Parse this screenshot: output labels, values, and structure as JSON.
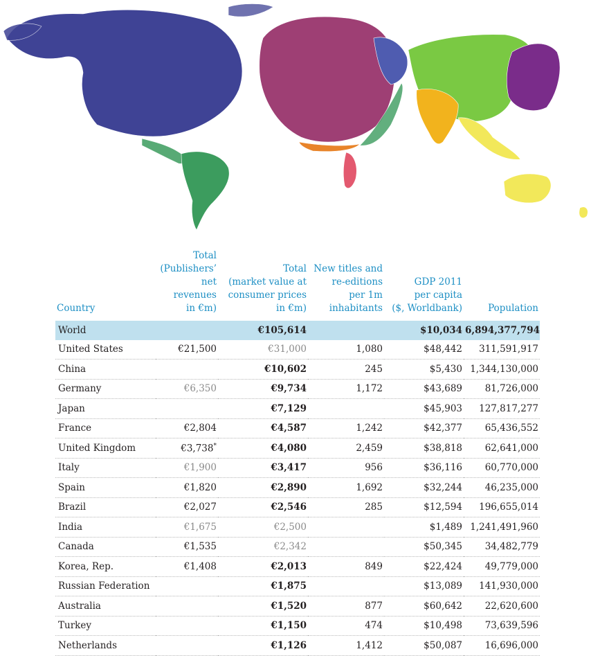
{
  "map": {
    "type": "cartogram",
    "colors": {
      "north_america": "#3f4395",
      "south_america": "#3c9c5e",
      "europe": "#9e3f74",
      "eastern_europe": "#4f5cb0",
      "russia_asia": "#7ac943",
      "east_asia": "#7a2c8a",
      "india": "#f2b31d",
      "southeast_asia": "#f2e85a",
      "oceania": "#f2e85a",
      "africa": "#e3596f",
      "middle_east": "#e8842a"
    }
  },
  "chart_data": {
    "type": "table",
    "columns": [
      "Country",
      "Total\n(Publishers’\nnet revenues\nin €m)",
      "Total\n(market value at\nconsumer prices\nin €m)",
      "New titles and\nre-editions\nper 1m\ninhabitants",
      "GDP 2011\nper capita\n($, Worldbank)",
      "Population"
    ],
    "rows": [
      {
        "country": "World",
        "pub": "",
        "market": "€105,614",
        "titles": "",
        "gdp": "$10,034",
        "pop": "6,894,377,794",
        "pub_grey": false,
        "market_grey": false
      },
      {
        "country": "United States",
        "pub": "€21,500",
        "market": "€31,000",
        "titles": "1,080",
        "gdp": "$48,442",
        "pop": "311,591,917",
        "pub_grey": false,
        "market_grey": true
      },
      {
        "country": "China",
        "pub": "",
        "market": "€10,602",
        "titles": "245",
        "gdp": "$5,430",
        "pop": "1,344,130,000",
        "pub_grey": false,
        "market_grey": false
      },
      {
        "country": "Germany",
        "pub": "€6,350",
        "market": "€9,734",
        "titles": "1,172",
        "gdp": "$43,689",
        "pop": "81,726,000",
        "pub_grey": true,
        "market_grey": false
      },
      {
        "country": "Japan",
        "pub": "",
        "market": "€7,129",
        "titles": "",
        "gdp": "$45,903",
        "pop": "127,817,277",
        "pub_grey": false,
        "market_grey": false
      },
      {
        "country": "France",
        "pub": "€2,804",
        "market": "€4,587",
        "titles": "1,242",
        "gdp": "$42,377",
        "pop": "65,436,552",
        "pub_grey": false,
        "market_grey": false
      },
      {
        "country": "United Kingdom",
        "pub": "€3,738*",
        "market": "€4,080",
        "titles": "2,459",
        "gdp": "$38,818",
        "pop": "62,641,000",
        "pub_grey": false,
        "market_grey": false
      },
      {
        "country": "Italy",
        "pub": "€1,900",
        "market": "€3,417",
        "titles": "956",
        "gdp": "$36,116",
        "pop": "60,770,000",
        "pub_grey": true,
        "market_grey": false
      },
      {
        "country": "Spain",
        "pub": "€1,820",
        "market": "€2,890",
        "titles": "1,692",
        "gdp": "$32,244",
        "pop": "46,235,000",
        "pub_grey": false,
        "market_grey": false
      },
      {
        "country": "Brazil",
        "pub": "€2,027",
        "market": "€2,546",
        "titles": "285",
        "gdp": "$12,594",
        "pop": "196,655,014",
        "pub_grey": false,
        "market_grey": false
      },
      {
        "country": "India",
        "pub": "€1,675",
        "market": "€2,500",
        "titles": "",
        "gdp": "$1,489",
        "pop": "1,241,491,960",
        "pub_grey": true,
        "market_grey": true
      },
      {
        "country": "Canada",
        "pub": "€1,535",
        "market": "€2,342",
        "titles": "",
        "gdp": "$50,345",
        "pop": "34,482,779",
        "pub_grey": false,
        "market_grey": true
      },
      {
        "country": "Korea, Rep.",
        "pub": "€1,408",
        "market": "€2,013",
        "titles": "849",
        "gdp": "$22,424",
        "pop": "49,779,000",
        "pub_grey": false,
        "market_grey": false
      },
      {
        "country": "Russian Federation",
        "pub": "",
        "market": "€1,875",
        "titles": "",
        "gdp": "$13,089",
        "pop": "141,930,000",
        "pub_grey": false,
        "market_grey": false
      },
      {
        "country": "Australia",
        "pub": "",
        "market": "€1,520",
        "titles": "877",
        "gdp": "$60,642",
        "pop": "22,620,600",
        "pub_grey": false,
        "market_grey": false
      },
      {
        "country": "Turkey",
        "pub": "",
        "market": "€1,150",
        "titles": "474",
        "gdp": "$10,498",
        "pop": "73,639,596",
        "pub_grey": false,
        "market_grey": false
      },
      {
        "country": "Netherlands",
        "pub": "",
        "market": "€1,126",
        "titles": "1,412",
        "gdp": "$50,087",
        "pop": "16,696,000",
        "pub_grey": false,
        "market_grey": false
      }
    ],
    "highlight_row": "World",
    "colors": {
      "header_text": "#1d8fc4",
      "highlight_row_bg": "#bfe0ee",
      "estimated_value_text": "#8a8a8a"
    }
  }
}
